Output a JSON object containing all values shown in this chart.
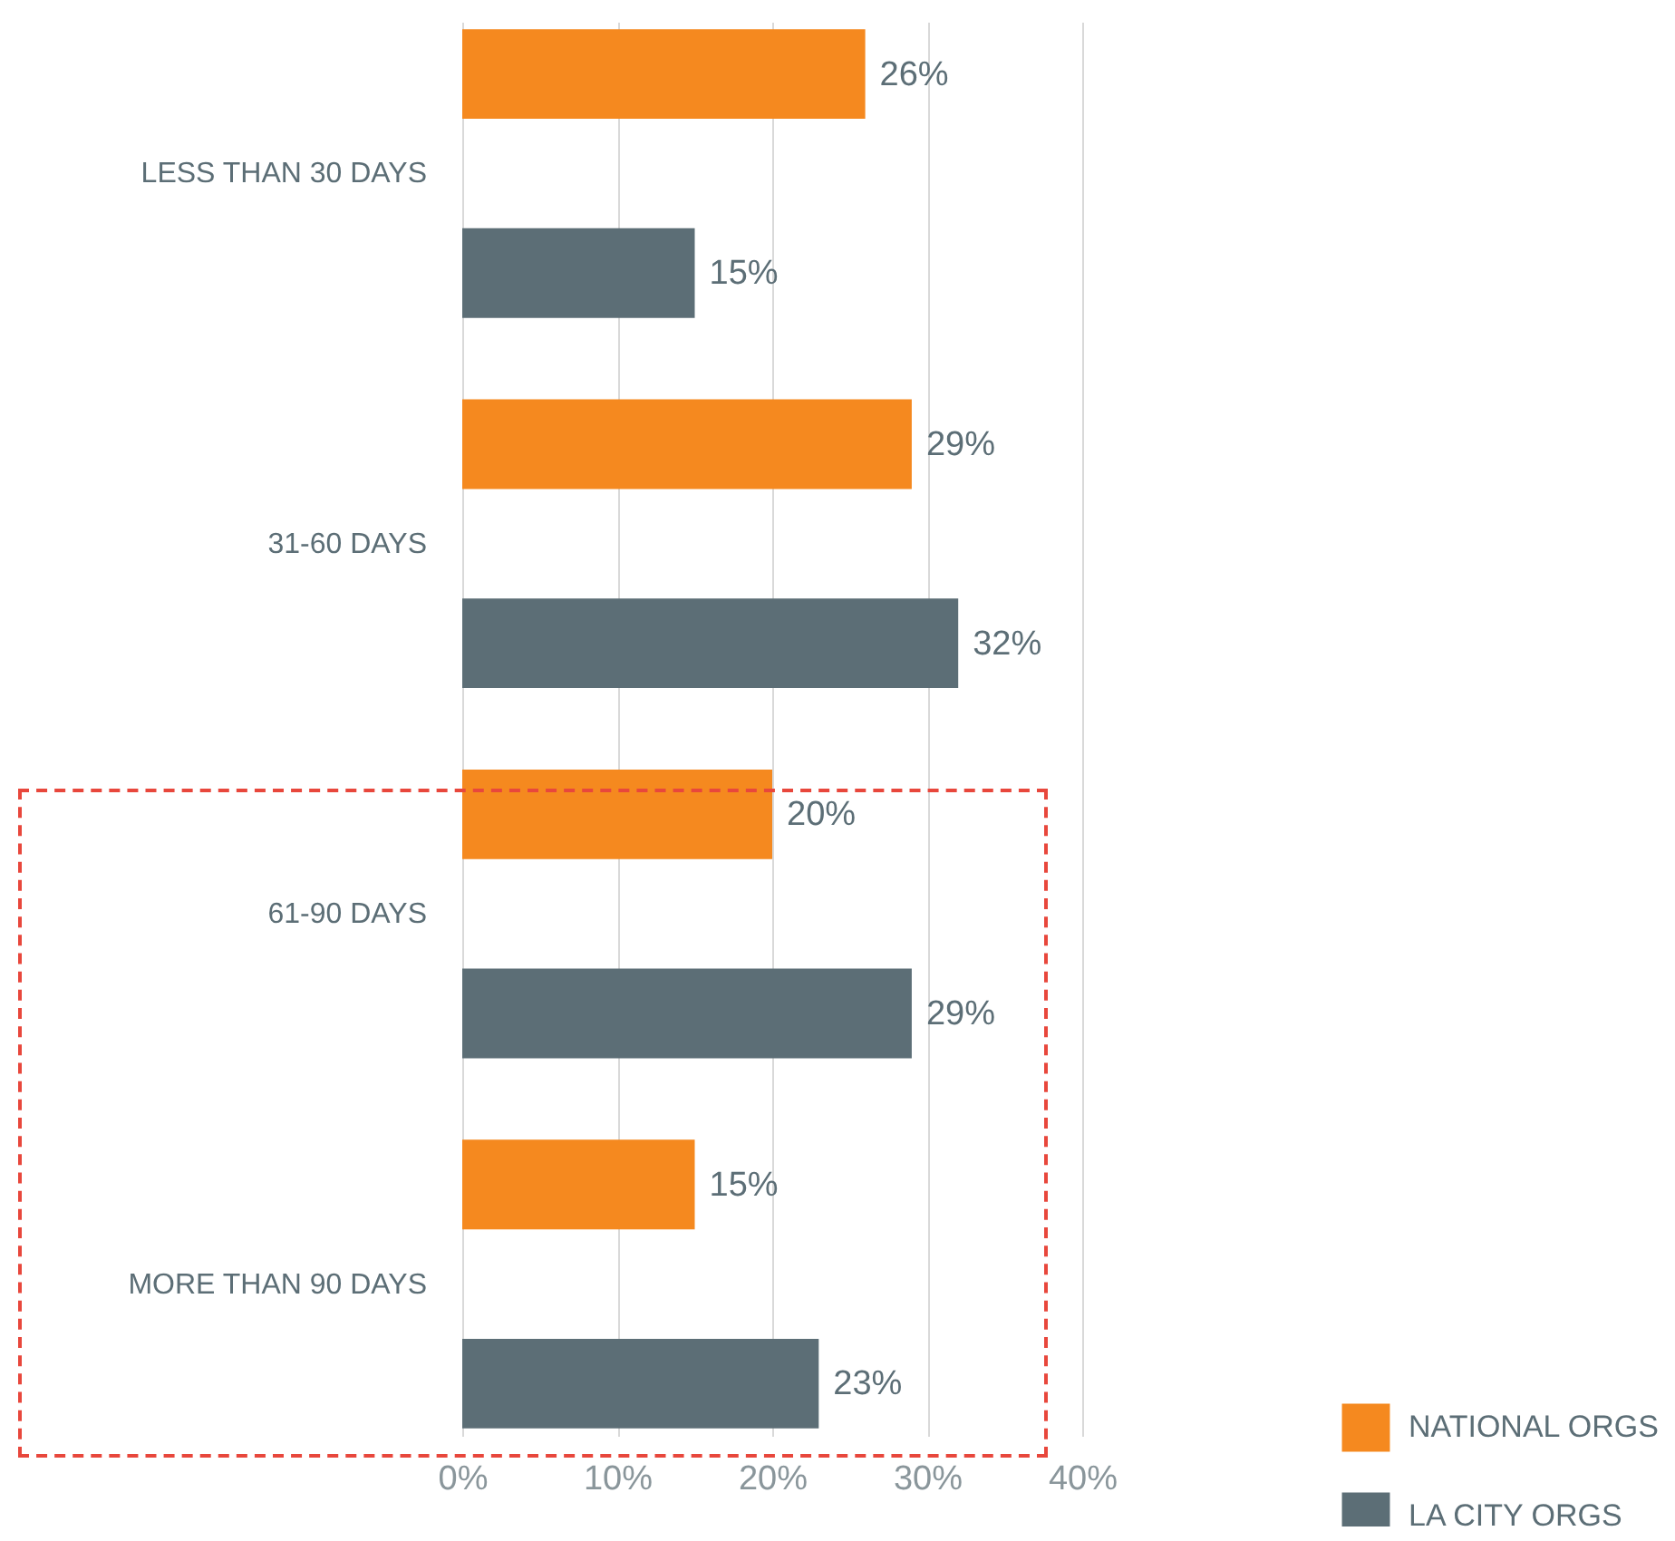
{
  "chart_data": {
    "type": "bar",
    "orientation": "horizontal",
    "categories": [
      "LESS THAN 30 DAYS",
      "31-60 DAYS",
      "61-90 DAYS",
      "MORE THAN 90 DAYS"
    ],
    "series": [
      {
        "name": "NATIONAL ORGS",
        "color": "#f5891f",
        "values": [
          26,
          29,
          20,
          15
        ],
        "value_labels": [
          "26%",
          "29%",
          "20%",
          "15%"
        ]
      },
      {
        "name": "LA CITY ORGS",
        "color": "#5c6e76",
        "values": [
          15,
          32,
          29,
          23
        ],
        "value_labels": [
          "15%",
          "32%",
          "29%",
          "23%"
        ]
      }
    ],
    "xlim": [
      0,
      40
    ],
    "xticks": [
      {
        "value": 0,
        "label": "0%"
      },
      {
        "value": 10,
        "label": "10%"
      },
      {
        "value": 20,
        "label": "20%"
      },
      {
        "value": 30,
        "label": "30%"
      },
      {
        "value": 40,
        "label": "40%"
      }
    ],
    "grid": "x",
    "legend": "bottom right"
  }
}
